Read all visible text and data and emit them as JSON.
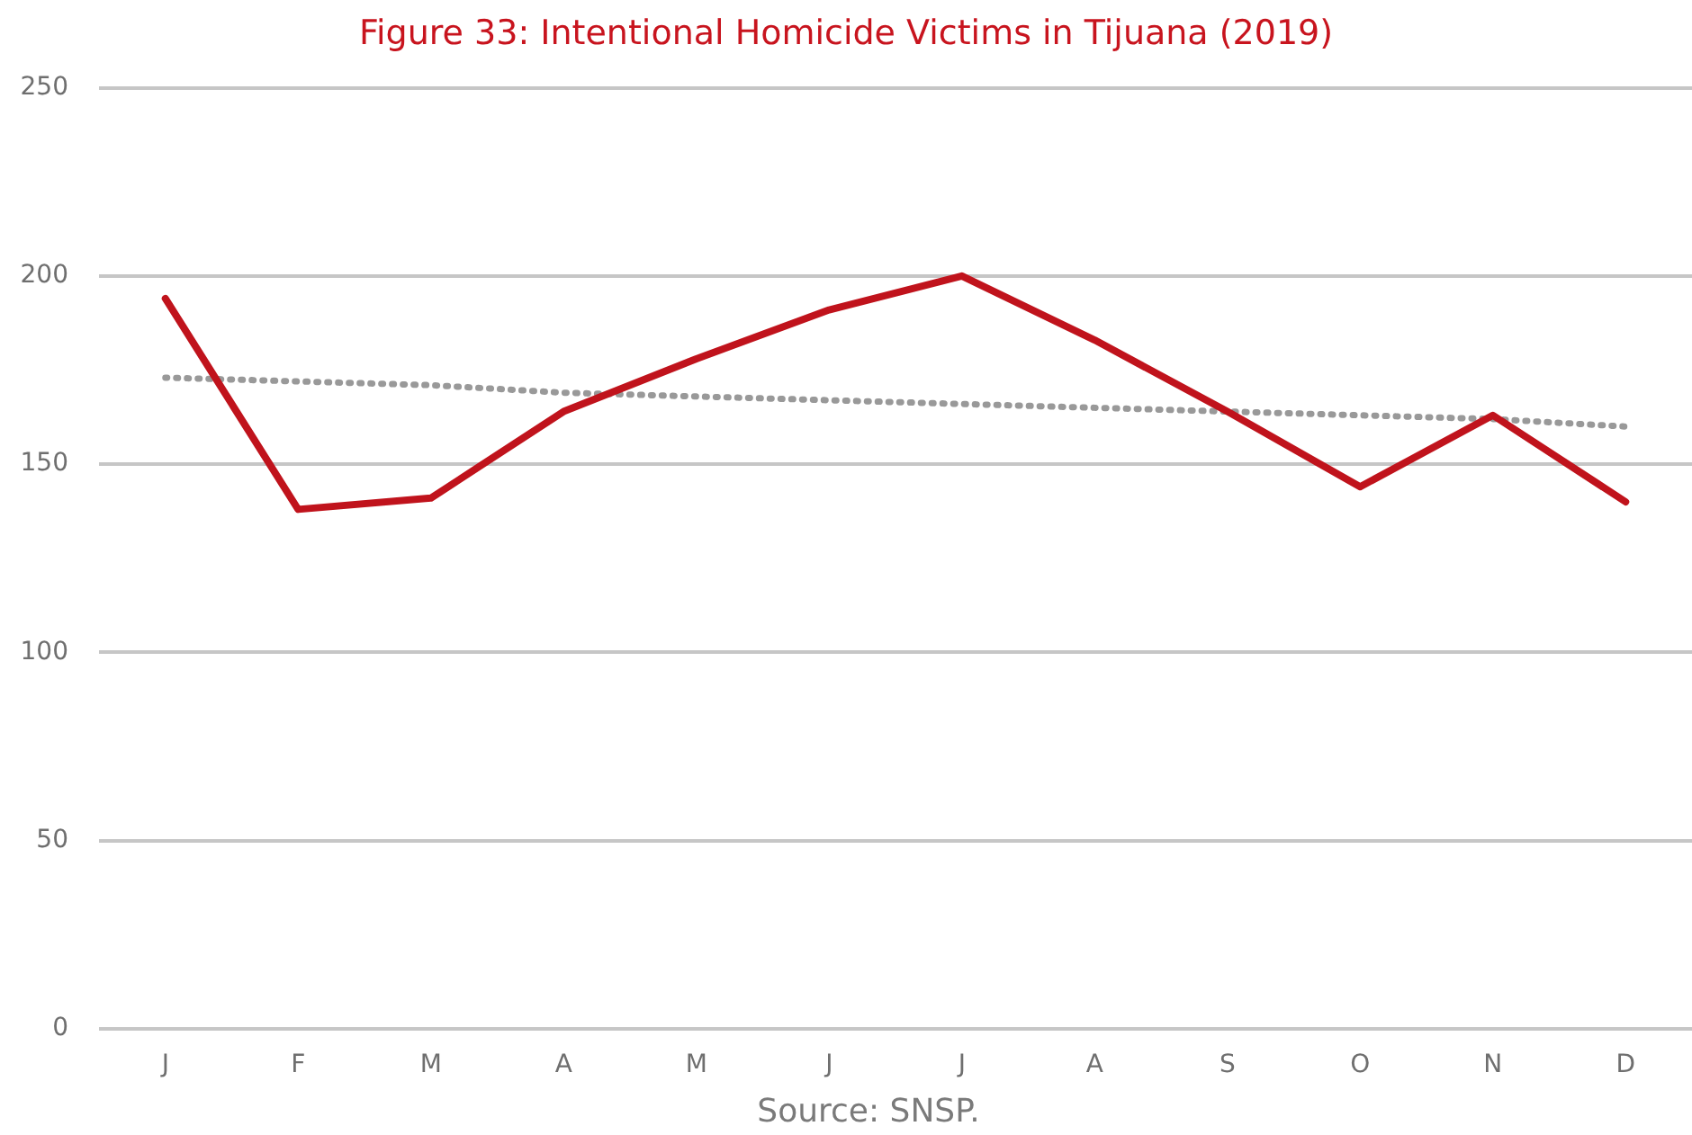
{
  "chart_data": {
    "type": "line",
    "title": "Figure 33: Intentional Homicide Victims in Tijuana (2019)",
    "annotations": [
      "Source: SNSP."
    ],
    "categories": [
      "J",
      "F",
      "M",
      "A",
      "M",
      "J",
      "J",
      "A",
      "S",
      "O",
      "N",
      "D"
    ],
    "series": [
      {
        "color": "#c0131c",
        "values": [
          194,
          138,
          141,
          164,
          178,
          191,
          200,
          183,
          164,
          144,
          163,
          140
        ],
        "line_style": "solid"
      },
      {
        "type": "line",
        "color": "#999999",
        "values": [
          173,
          172,
          171,
          169,
          168,
          167,
          166,
          165,
          164,
          163,
          162,
          160
        ],
        "line_style": "dotted"
      }
    ],
    "ylim": [
      0,
      250
    ],
    "yticks": [
      0,
      50,
      100,
      150,
      200,
      250
    ],
    "grid": "y",
    "legend": false,
    "marker": "none"
  }
}
